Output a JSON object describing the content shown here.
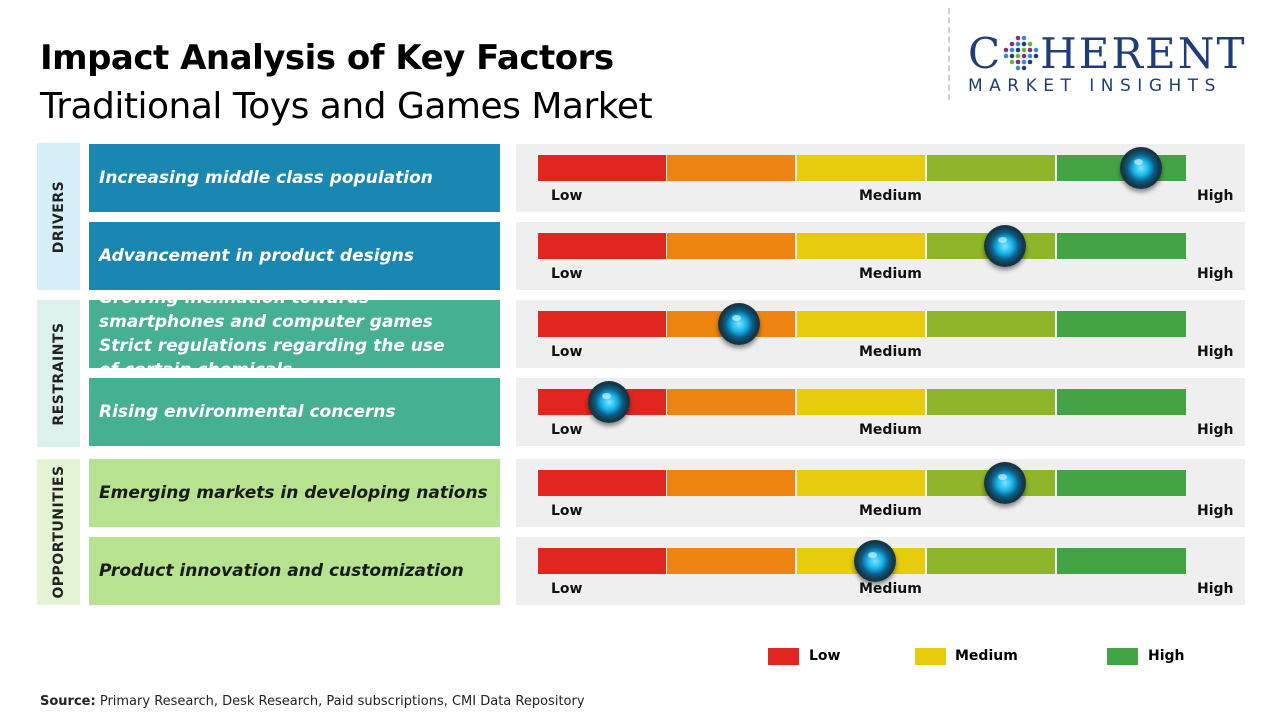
{
  "header": {
    "title": "Impact Analysis of Key Factors",
    "subtitle": "Traditional Toys and Games Market"
  },
  "logo": {
    "name_before": "C",
    "name_after": "HERENT",
    "tagline": "MARKET INSIGHTS"
  },
  "colors": {
    "drivers": "#1a87b3",
    "drivers_cat_bg": "#d6eef8",
    "restraints": "#46b093",
    "restraints_cat_bg": "#dcf0ec",
    "opportunities": "#b7e28f",
    "opportunities_cat_bg": "#e3f4d4",
    "low": "#e0261f",
    "low_mid": "#ee8412",
    "medium": "#e6cc0c",
    "mid_high": "#8fb52a",
    "high": "#44a445",
    "knob": "#18b4ea"
  },
  "chart_data": {
    "type": "bar",
    "scale_labels": {
      "low": "Low",
      "medium": "Medium",
      "high": "High"
    },
    "categories": [
      {
        "name": "DRIVERS",
        "factors": [
          {
            "text": "Increasing middle class population",
            "impact": 0.93
          },
          {
            "text": "Advancement in product designs",
            "impact": 0.72
          }
        ]
      },
      {
        "name": "RESTRAINTS",
        "factors": [
          {
            "text": "Growing inclination towards smartphones and computer games",
            "text2": "Strict regulations regarding the use of certain chemicals",
            "impact": 0.31
          },
          {
            "text": "Rising environmental concerns",
            "impact": 0.11
          }
        ]
      },
      {
        "name": "OPPORTUNITIES",
        "factors": [
          {
            "text": "Emerging markets in developing nations",
            "impact": 0.72
          },
          {
            "text": "Product innovation and customization",
            "impact": 0.52
          }
        ]
      }
    ],
    "legend": [
      {
        "label": "Low",
        "color": "#e0261f"
      },
      {
        "label": "Medium",
        "color": "#e6cc0c"
      },
      {
        "label": "High",
        "color": "#44a445"
      }
    ]
  },
  "source": {
    "label": "Source:",
    "text": "Primary Research, Desk Research, Paid subscriptions, CMI Data Repository"
  }
}
